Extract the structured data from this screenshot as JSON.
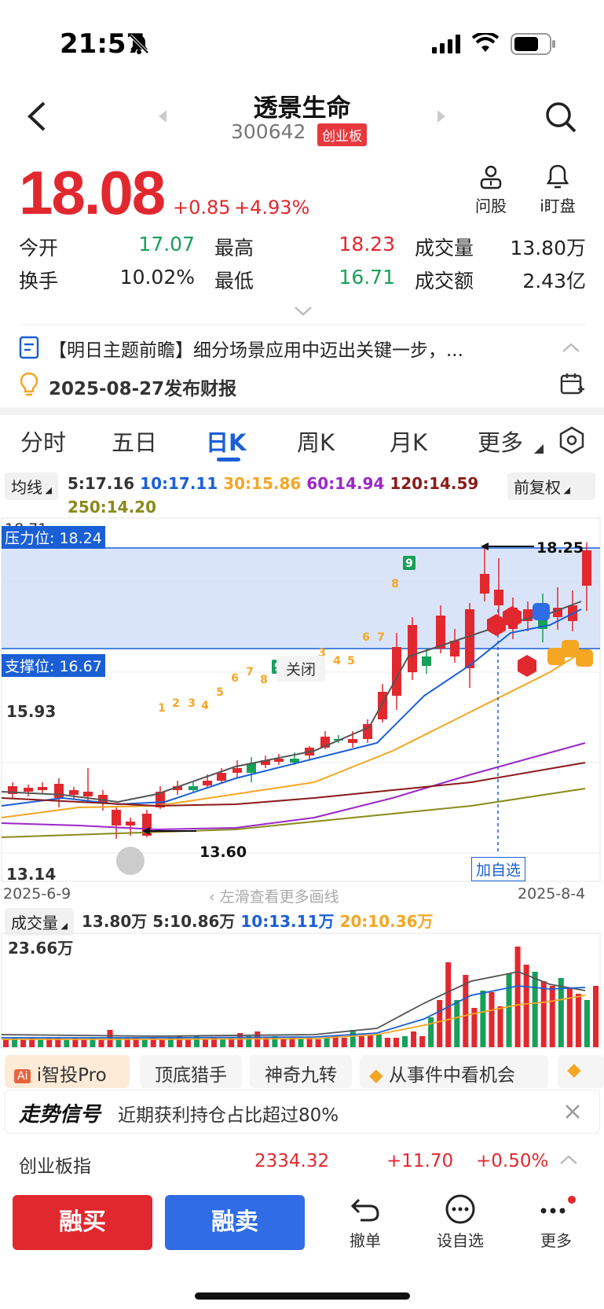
{
  "status_bar": {
    "time": "21:57"
  },
  "header": {
    "name": "透景生命",
    "code": "300642",
    "board": "创业板"
  },
  "quote": {
    "price": "18.08",
    "change": "+0.85",
    "change_pct": "+4.93%",
    "actions": [
      {
        "label": "问股",
        "icon": "person-icon"
      },
      {
        "label": "i盯盘",
        "icon": "bell-icon"
      }
    ],
    "rows": [
      [
        {
          "label": "今开",
          "value": "17.07",
          "color": "green"
        },
        {
          "label": "最高",
          "value": "18.23",
          "color": "red"
        },
        {
          "label": "成交量",
          "value": "13.80万",
          "color": "black"
        }
      ],
      [
        {
          "label": "换手",
          "value": "10.02%",
          "color": "black"
        },
        {
          "label": "最低",
          "value": "16.71",
          "color": "green"
        },
        {
          "label": "成交额",
          "value": "2.43亿",
          "color": "black"
        }
      ]
    ]
  },
  "news": {
    "headline": "【明日主题前瞻】细分场景应用中迈出关键一步，...",
    "report": "2025-08-27发布财报"
  },
  "tabs": [
    "分时",
    "五日",
    "日K",
    "周K",
    "月K",
    "更多"
  ],
  "active_tab": "日K",
  "ma": {
    "selector": "均线",
    "fuquan": "前复权",
    "items": [
      {
        "text": "5:17.16",
        "color": "#333333"
      },
      {
        "text": "10:17.11",
        "color": "#1a5fd6"
      },
      {
        "text": "30:15.86",
        "color": "#f5a623"
      },
      {
        "text": "60:14.94",
        "color": "#9b27c9"
      },
      {
        "text": "120:14.59",
        "color": "#8b1a1a"
      },
      {
        "text": "250:14.20",
        "color": "#8a8a1a"
      }
    ]
  },
  "kline": {
    "y_top": "18.71",
    "y_mid": "15.93",
    "y_bottom": "13.14",
    "resistance": "压力位: 18.24",
    "support": "支撑位: 16.67",
    "close_btn": "关闭",
    "high_mark": "18.25",
    "low_mark": "13.60",
    "date_start": "2025-6-9",
    "date_end": "2025-8-4",
    "swipe_hint": "左滑查看更多画线",
    "add_watch": "加自选",
    "seq_labels": [
      "1",
      "2",
      "3",
      "4",
      "5",
      "6",
      "7",
      "8",
      "9",
      "1",
      "2",
      "3",
      "4",
      "5",
      "6",
      "7",
      "8",
      "9"
    ],
    "accent_colors": {
      "up": "#e2282f",
      "down": "#16a05a",
      "band": "#c9d8f7"
    }
  },
  "volume": {
    "selector": "成交量",
    "current": "13.80万",
    "ma5": "5:10.86万",
    "ma10": "10:13.11万",
    "ma20": "20:10.36万",
    "max": "23.66万"
  },
  "strategies": [
    "i智投Pro",
    "顶底猎手",
    "神奇九转",
    "从事件中看机会"
  ],
  "signal": {
    "title": "走势信号",
    "text": "近期获利持仓占比超过80%"
  },
  "index": {
    "name": "创业板指",
    "value": "2334.32",
    "change": "+11.70",
    "change_pct": "+0.50%"
  },
  "bottom": {
    "buy": "融买",
    "sell": "融卖",
    "nav": [
      "撤单",
      "设自选",
      "更多"
    ]
  }
}
